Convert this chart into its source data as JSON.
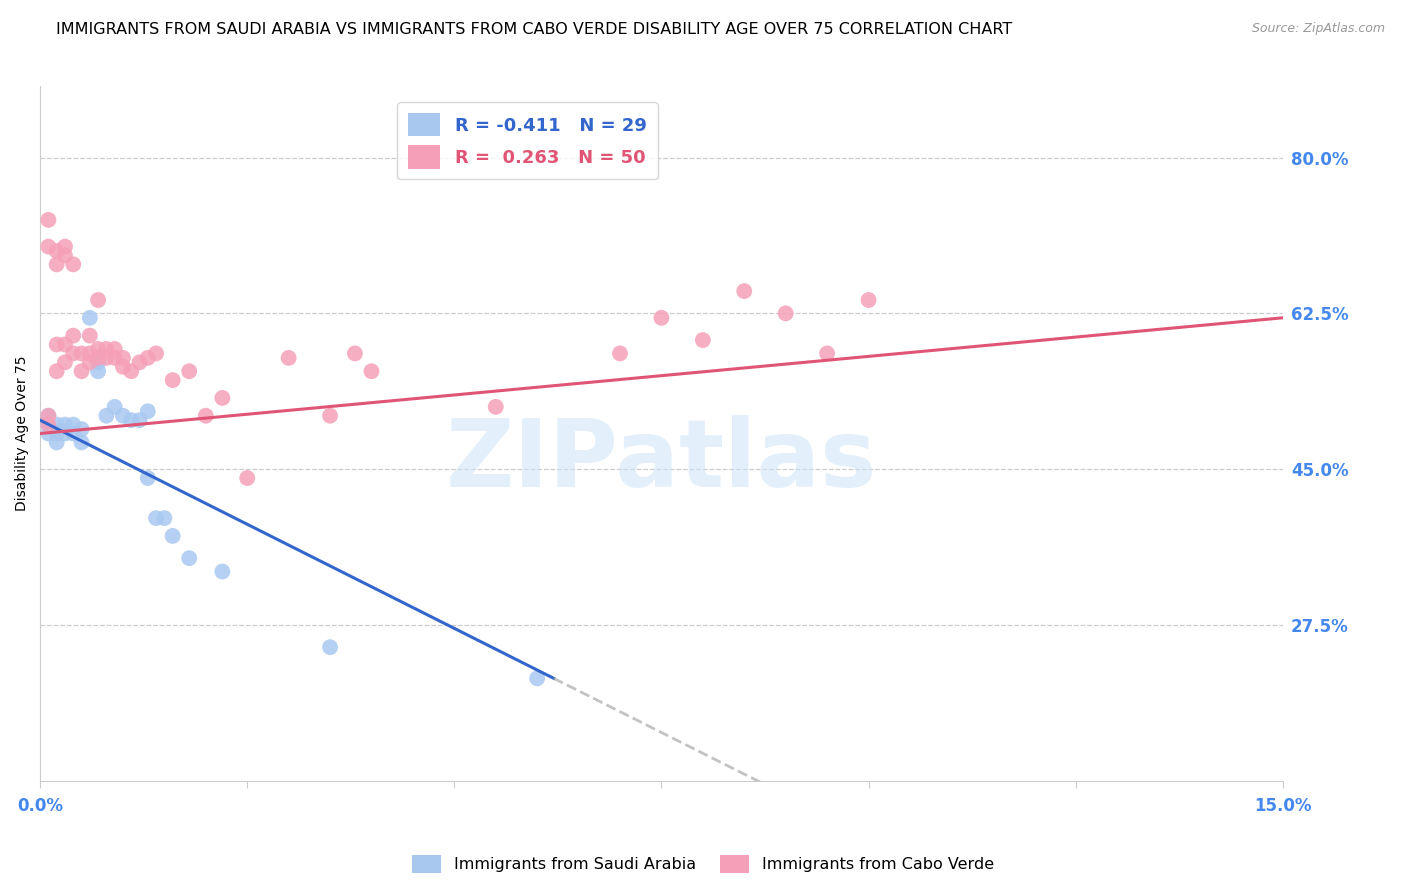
{
  "title": "IMMIGRANTS FROM SAUDI ARABIA VS IMMIGRANTS FROM CABO VERDE DISABILITY AGE OVER 75 CORRELATION CHART",
  "source": "Source: ZipAtlas.com",
  "ylabel": "Disability Age Over 75",
  "ytick_vals": [
    0.275,
    0.45,
    0.625,
    0.8
  ],
  "ytick_labels": [
    "27.5%",
    "45.0%",
    "62.5%",
    "80.0%"
  ],
  "xmin": 0.0,
  "xmax": 0.15,
  "ymin": 0.1,
  "ymax": 0.88,
  "saudi_color": "#a8c8f0",
  "saudi_line_color": "#3366cc",
  "cabo_color": "#f5a0b8",
  "cabo_line_color": "#e05575",
  "background_color": "#ffffff",
  "grid_color": "#cccccc",
  "tick_label_color": "#4488ee",
  "title_fontsize": 11.5,
  "source_fontsize": 9,
  "axis_label_fontsize": 10,
  "tick_fontsize": 12,
  "legend_fontsize": 13,
  "scatter_size": 130,
  "saudi_legend": "R = -0.411   N = 29",
  "cabo_legend": "R =  0.263   N = 50",
  "saudi_name": "Immigrants from Saudi Arabia",
  "cabo_name": "Immigrants from Cabo Verde",
  "watermark": "ZIPatlas",
  "saudi_x": [
    0.001,
    0.001,
    0.001,
    0.002,
    0.002,
    0.002,
    0.003,
    0.003,
    0.004,
    0.004,
    0.005,
    0.005,
    0.006,
    0.007,
    0.007,
    0.008,
    0.009,
    0.01,
    0.011,
    0.012,
    0.013,
    0.013,
    0.014,
    0.015,
    0.016,
    0.018,
    0.022,
    0.035,
    0.06
  ],
  "saudi_y": [
    0.49,
    0.5,
    0.51,
    0.48,
    0.49,
    0.5,
    0.49,
    0.5,
    0.49,
    0.5,
    0.48,
    0.495,
    0.62,
    0.56,
    0.57,
    0.51,
    0.52,
    0.51,
    0.505,
    0.505,
    0.515,
    0.44,
    0.395,
    0.395,
    0.375,
    0.35,
    0.335,
    0.25,
    0.215
  ],
  "cabo_x": [
    0.001,
    0.001,
    0.001,
    0.002,
    0.002,
    0.003,
    0.003,
    0.003,
    0.004,
    0.004,
    0.005,
    0.005,
    0.006,
    0.006,
    0.006,
    0.007,
    0.007,
    0.007,
    0.008,
    0.008,
    0.009,
    0.009,
    0.01,
    0.01,
    0.011,
    0.012,
    0.013,
    0.014,
    0.016,
    0.018,
    0.02,
    0.022,
    0.025,
    0.03,
    0.035,
    0.038,
    0.04,
    0.055,
    0.07,
    0.075,
    0.08,
    0.085,
    0.09,
    0.095,
    0.1,
    0.001,
    0.002,
    0.002,
    0.003,
    0.004
  ],
  "cabo_y": [
    0.5,
    0.51,
    0.73,
    0.56,
    0.59,
    0.57,
    0.59,
    0.69,
    0.58,
    0.6,
    0.56,
    0.58,
    0.57,
    0.58,
    0.6,
    0.575,
    0.585,
    0.64,
    0.575,
    0.585,
    0.575,
    0.585,
    0.565,
    0.575,
    0.56,
    0.57,
    0.575,
    0.58,
    0.55,
    0.56,
    0.51,
    0.53,
    0.44,
    0.575,
    0.51,
    0.58,
    0.56,
    0.52,
    0.58,
    0.62,
    0.595,
    0.65,
    0.625,
    0.58,
    0.64,
    0.7,
    0.68,
    0.695,
    0.7,
    0.68
  ]
}
